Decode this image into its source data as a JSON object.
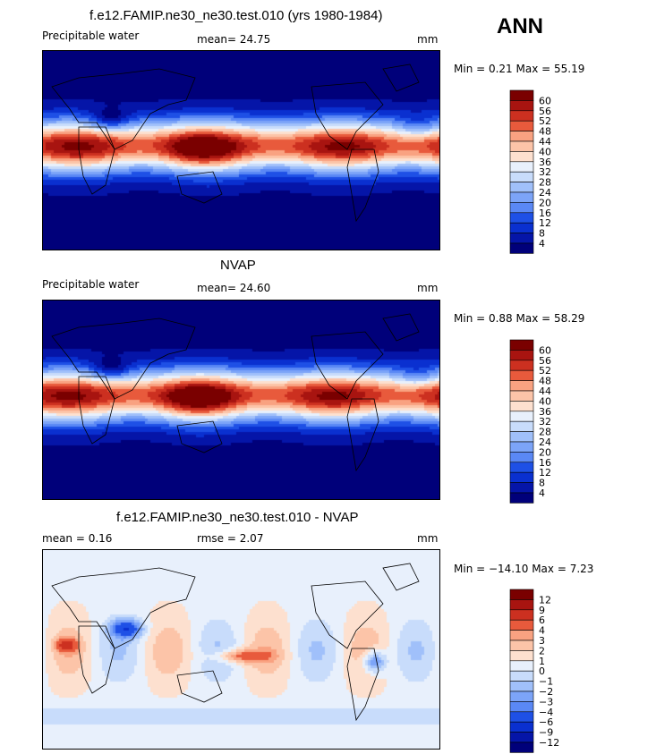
{
  "season": "ANN",
  "panels": [
    {
      "title": "f.e12.FAMIP.ne30_ne30.test.010 (yrs 1980-1984)",
      "left_label": "Precipitable water",
      "mid_label": "mean=  24.75",
      "right_label": "mm",
      "minmax": "Min =   0.21 Max =  55.19",
      "palette": "precip"
    },
    {
      "title": "NVAP",
      "left_label": "Precipitable water",
      "mid_label": "mean=  24.60",
      "right_label": "mm",
      "minmax": "Min =   0.88 Max =  58.29",
      "palette": "precip"
    },
    {
      "title": "f.e12.FAMIP.ne30_ne30.test.010 - NVAP",
      "left_label": "mean =    0.16",
      "mid_label": "rmse =    2.07",
      "right_label": "mm",
      "minmax": "Min = −14.10 Max =   7.23",
      "palette": "diff"
    }
  ],
  "chart_data": [
    {
      "type": "heatmap",
      "title": "f.e12.FAMIP.ne30_ne30.test.010 (yrs 1980-1984)",
      "variable": "Precipitable water",
      "units": "mm",
      "mean": 24.75,
      "min": 0.21,
      "max": 55.19,
      "contour_levels": [
        4,
        8,
        12,
        16,
        20,
        24,
        28,
        32,
        36,
        40,
        44,
        48,
        52,
        56,
        60
      ],
      "colorbar_labels": [
        "60",
        "56",
        "52",
        "48",
        "44",
        "40",
        "36",
        "32",
        "28",
        "24",
        "20",
        "16",
        "12",
        "8",
        "4"
      ],
      "colors": [
        "#00007a",
        "#0515a8",
        "#0a30d0",
        "#1e50e6",
        "#3c6cf0",
        "#5a88f5",
        "#7ca4f8",
        "#a0c0fa",
        "#c8dcfb",
        "#e8f0fc",
        "#fde0cf",
        "#fcc4a8",
        "#f9a281",
        "#f5815e",
        "#e85a3c",
        "#cc3020",
        "#a81410",
        "#7a0000"
      ]
    },
    {
      "type": "heatmap",
      "title": "NVAP",
      "variable": "Precipitable water",
      "units": "mm",
      "mean": 24.6,
      "min": 0.88,
      "max": 58.29,
      "contour_levels": [
        4,
        8,
        12,
        16,
        20,
        24,
        28,
        32,
        36,
        40,
        44,
        48,
        52,
        56,
        60
      ],
      "colorbar_labels": [
        "60",
        "56",
        "52",
        "48",
        "44",
        "40",
        "36",
        "32",
        "28",
        "24",
        "20",
        "16",
        "12",
        "8",
        "4"
      ],
      "colors": [
        "#00007a",
        "#0515a8",
        "#0a30d0",
        "#1e50e6",
        "#3c6cf0",
        "#5a88f5",
        "#7ca4f8",
        "#a0c0fa",
        "#c8dcfb",
        "#e8f0fc",
        "#fde0cf",
        "#fcc4a8",
        "#f9a281",
        "#f5815e",
        "#e85a3c",
        "#cc3020",
        "#a81410",
        "#7a0000"
      ]
    },
    {
      "type": "heatmap",
      "title": "f.e12.FAMIP.ne30_ne30.test.010 - NVAP",
      "units": "mm",
      "mean": 0.16,
      "rmse": 2.07,
      "min": -14.1,
      "max": 7.23,
      "contour_levels": [
        -12,
        -9,
        -6,
        -4,
        -3,
        -2,
        -1,
        0,
        1,
        2,
        3,
        4,
        6,
        9,
        12
      ],
      "colorbar_labels": [
        "12",
        "9",
        "6",
        "4",
        "3",
        "2",
        "1",
        "0",
        "−1",
        "−2",
        "−3",
        "−4",
        "−6",
        "−9",
        "−12"
      ],
      "colors": [
        "#00007a",
        "#0515a8",
        "#0a30d0",
        "#1e50e6",
        "#3c6cf0",
        "#5a88f5",
        "#7ca4f8",
        "#a0c0fa",
        "#c8dcfb",
        "#e8f0fc",
        "#fde0cf",
        "#fcc4a8",
        "#f9a281",
        "#f5815e",
        "#e85a3c",
        "#cc3020",
        "#a81410",
        "#7a0000"
      ]
    }
  ]
}
